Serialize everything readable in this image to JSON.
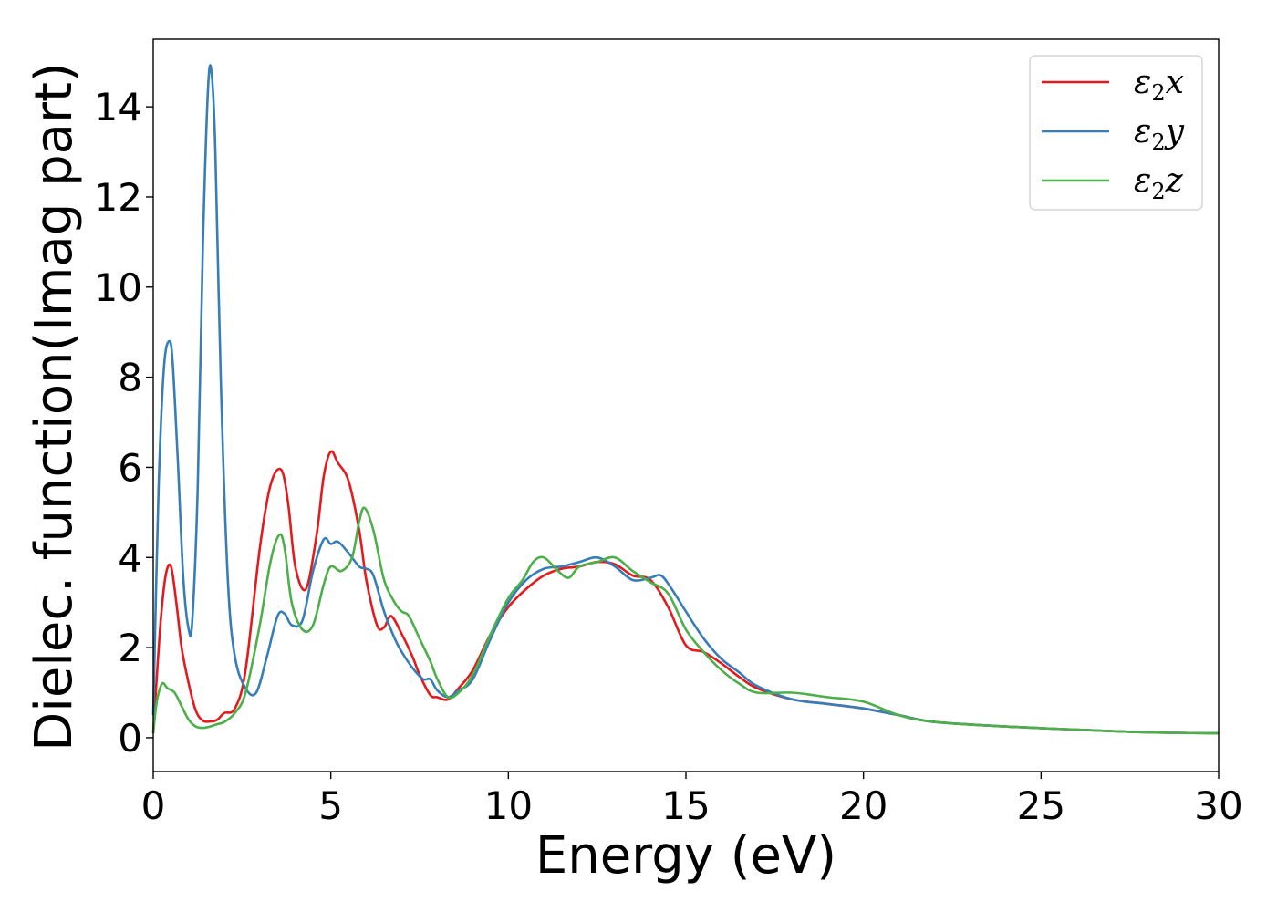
{
  "chart_data": {
    "type": "line",
    "title": "",
    "xlabel": "Energy (eV)",
    "ylabel": "Dielec. function(Imag part)",
    "xlim": [
      0,
      30
    ],
    "ylim": [
      -0.75,
      15.5
    ],
    "xticks": [
      0,
      5,
      10,
      15,
      20,
      25,
      30
    ],
    "yticks": [
      0,
      2,
      4,
      6,
      8,
      10,
      12,
      14
    ],
    "grid": false,
    "legend_position": "top-right",
    "series": [
      {
        "name": "ε2x",
        "legend_base": "ε",
        "legend_sub": "2",
        "legend_suffix": "x",
        "color": "#e41a1c",
        "x": [
          0,
          0.2,
          0.35,
          0.5,
          0.65,
          0.8,
          1.0,
          1.2,
          1.4,
          1.6,
          1.8,
          2.0,
          2.3,
          2.6,
          3.0,
          3.3,
          3.6,
          3.8,
          4.0,
          4.3,
          4.6,
          4.8,
          5.0,
          5.2,
          5.5,
          5.8,
          6.0,
          6.3,
          6.5,
          6.7,
          7.0,
          7.3,
          7.5,
          7.8,
          8.0,
          8.3,
          8.6,
          9.0,
          9.5,
          10.0,
          10.5,
          11.0,
          11.5,
          12.0,
          12.5,
          13.0,
          13.5,
          14.0,
          14.5,
          15.0,
          15.5,
          16.0,
          16.5,
          17.0,
          18.0,
          19.0,
          20.0,
          21.0,
          22.0,
          24.0,
          26.0,
          28.0,
          30.0
        ],
        "y": [
          0.1,
          2.5,
          3.6,
          3.8,
          3.0,
          2.0,
          1.2,
          0.6,
          0.38,
          0.36,
          0.4,
          0.55,
          0.65,
          1.5,
          4.2,
          5.6,
          5.95,
          5.2,
          3.8,
          3.3,
          4.5,
          5.8,
          6.35,
          6.1,
          5.7,
          4.6,
          3.5,
          2.5,
          2.45,
          2.7,
          2.3,
          1.8,
          1.4,
          0.95,
          0.9,
          0.85,
          1.1,
          1.5,
          2.3,
          2.9,
          3.3,
          3.6,
          3.75,
          3.8,
          3.9,
          3.85,
          3.6,
          3.5,
          2.9,
          2.05,
          1.9,
          1.65,
          1.35,
          1.1,
          0.85,
          0.75,
          0.65,
          0.5,
          0.35,
          0.25,
          0.18,
          0.12,
          0.1
        ]
      },
      {
        "name": "ε2y",
        "legend_base": "ε",
        "legend_sub": "2",
        "legend_suffix": "y",
        "color": "#377eb8",
        "x": [
          0,
          0.15,
          0.3,
          0.45,
          0.55,
          0.7,
          0.85,
          1.0,
          1.1,
          1.25,
          1.4,
          1.55,
          1.65,
          1.75,
          1.9,
          2.1,
          2.3,
          2.6,
          2.9,
          3.2,
          3.5,
          3.7,
          3.9,
          4.2,
          4.5,
          4.8,
          5.0,
          5.2,
          5.5,
          5.8,
          6.0,
          6.2,
          6.5,
          6.8,
          7.0,
          7.3,
          7.6,
          7.8,
          8.0,
          8.3,
          8.6,
          9.0,
          9.5,
          10.0,
          10.5,
          11.0,
          11.5,
          12.0,
          12.5,
          13.0,
          13.5,
          14.0,
          14.3,
          14.6,
          15.0,
          15.5,
          16.0,
          16.5,
          17.0,
          18.0,
          19.0,
          20.0,
          21.0,
          22.0,
          24.0,
          26.0,
          28.0,
          30.0
        ],
        "y": [
          0.5,
          5.5,
          8.2,
          8.8,
          8.3,
          6.0,
          3.5,
          2.4,
          2.6,
          5.5,
          11.0,
          14.5,
          14.7,
          13.0,
          8.0,
          3.5,
          1.8,
          1.1,
          1.0,
          1.8,
          2.7,
          2.75,
          2.5,
          2.6,
          3.7,
          4.4,
          4.3,
          4.35,
          4.1,
          3.8,
          3.75,
          3.6,
          2.8,
          2.2,
          1.9,
          1.55,
          1.3,
          1.3,
          1.05,
          0.9,
          1.05,
          1.3,
          2.2,
          3.0,
          3.5,
          3.75,
          3.8,
          3.9,
          4.0,
          3.8,
          3.5,
          3.55,
          3.6,
          3.3,
          2.8,
          2.2,
          1.75,
          1.45,
          1.15,
          0.85,
          0.75,
          0.65,
          0.5,
          0.35,
          0.25,
          0.18,
          0.12,
          0.1
        ]
      },
      {
        "name": "ε2z",
        "legend_base": "ε",
        "legend_sub": "2",
        "legend_suffix": "z",
        "color": "#4daf4a",
        "x": [
          0,
          0.1,
          0.25,
          0.4,
          0.6,
          0.8,
          1.0,
          1.2,
          1.4,
          1.6,
          1.8,
          2.0,
          2.3,
          2.6,
          3.0,
          3.3,
          3.55,
          3.7,
          3.9,
          4.2,
          4.5,
          4.8,
          5.0,
          5.3,
          5.6,
          5.8,
          5.95,
          6.2,
          6.5,
          6.8,
          7.0,
          7.2,
          7.5,
          7.8,
          8.0,
          8.3,
          8.6,
          9.0,
          9.5,
          10.0,
          10.4,
          10.7,
          11.0,
          11.4,
          11.7,
          12.0,
          12.5,
          13.0,
          13.5,
          14.0,
          14.5,
          15.0,
          15.5,
          16.0,
          16.5,
          17.0,
          18.0,
          19.0,
          20.0,
          21.0,
          22.0,
          24.0,
          26.0,
          28.0,
          30.0
        ],
        "y": [
          0.1,
          0.8,
          1.2,
          1.1,
          1.0,
          0.7,
          0.4,
          0.25,
          0.22,
          0.25,
          0.3,
          0.35,
          0.55,
          1.0,
          2.5,
          3.9,
          4.5,
          4.2,
          3.0,
          2.4,
          2.5,
          3.4,
          3.8,
          3.7,
          4.0,
          4.8,
          5.1,
          4.6,
          3.5,
          3.0,
          2.8,
          2.7,
          2.2,
          1.7,
          1.3,
          0.9,
          1.0,
          1.4,
          2.3,
          3.1,
          3.5,
          3.9,
          4.0,
          3.7,
          3.55,
          3.8,
          3.9,
          4.0,
          3.7,
          3.45,
          3.2,
          2.4,
          1.9,
          1.5,
          1.2,
          1.0,
          1.0,
          0.9,
          0.8,
          0.5,
          0.35,
          0.25,
          0.18,
          0.12,
          0.1
        ]
      }
    ]
  }
}
